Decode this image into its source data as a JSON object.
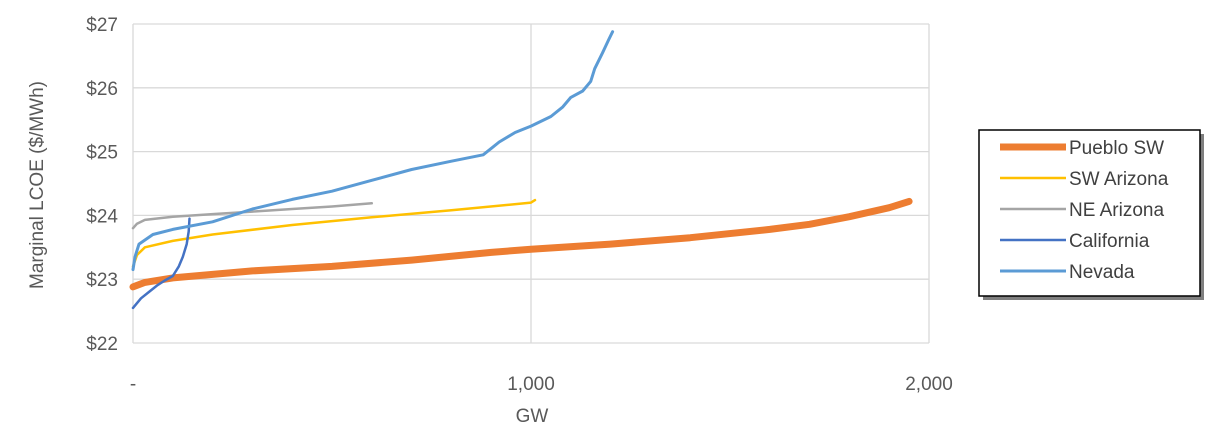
{
  "chart_data": {
    "type": "line",
    "xlabel": "GW",
    "ylabel": "Marginal LCOE ($/MWh)",
    "xlim": [
      0,
      2000
    ],
    "ylim": [
      22,
      27
    ],
    "x_ticks": [
      0,
      1000,
      2000
    ],
    "x_tick_labels": [
      "-",
      "1,000",
      "2,000"
    ],
    "y_ticks": [
      22,
      23,
      24,
      25,
      26,
      27
    ],
    "y_tick_labels": [
      "$22",
      "$23",
      "$24",
      "$25",
      "$26",
      "$27"
    ],
    "grid": true,
    "legend_position": "right",
    "series": [
      {
        "name": "Pueblo SW",
        "color": "#ED7D31",
        "width": 7,
        "points": [
          [
            0,
            22.88
          ],
          [
            30,
            22.95
          ],
          [
            100,
            23.02
          ],
          [
            300,
            23.13
          ],
          [
            500,
            23.2
          ],
          [
            700,
            23.3
          ],
          [
            900,
            23.42
          ],
          [
            1000,
            23.47
          ],
          [
            1200,
            23.55
          ],
          [
            1400,
            23.65
          ],
          [
            1600,
            23.78
          ],
          [
            1700,
            23.86
          ],
          [
            1800,
            23.98
          ],
          [
            1900,
            24.12
          ],
          [
            1950,
            24.22
          ]
        ]
      },
      {
        "name": "SW Arizona",
        "color": "#FFC000",
        "width": 2.5,
        "points": [
          [
            0,
            23.2
          ],
          [
            10,
            23.38
          ],
          [
            30,
            23.5
          ],
          [
            100,
            23.6
          ],
          [
            200,
            23.7
          ],
          [
            400,
            23.85
          ],
          [
            600,
            23.97
          ],
          [
            800,
            24.08
          ],
          [
            1000,
            24.2
          ],
          [
            1010,
            24.24
          ]
        ]
      },
      {
        "name": "NE Arizona",
        "color": "#A5A5A5",
        "width": 2.5,
        "points": [
          [
            0,
            23.8
          ],
          [
            10,
            23.87
          ],
          [
            30,
            23.93
          ],
          [
            100,
            23.98
          ],
          [
            200,
            24.02
          ],
          [
            300,
            24.06
          ],
          [
            400,
            24.1
          ],
          [
            500,
            24.14
          ],
          [
            600,
            24.19
          ]
        ]
      },
      {
        "name": "California",
        "color": "#4472C4",
        "width": 2.5,
        "points": [
          [
            0,
            22.55
          ],
          [
            20,
            22.7
          ],
          [
            40,
            22.8
          ],
          [
            60,
            22.9
          ],
          [
            80,
            22.98
          ],
          [
            100,
            23.05
          ],
          [
            115,
            23.2
          ],
          [
            125,
            23.35
          ],
          [
            135,
            23.55
          ],
          [
            140,
            23.75
          ],
          [
            142,
            23.95
          ]
        ]
      },
      {
        "name": "Nevada",
        "color": "#5B9BD5",
        "width": 3,
        "points": [
          [
            0,
            23.15
          ],
          [
            5,
            23.35
          ],
          [
            15,
            23.55
          ],
          [
            50,
            23.7
          ],
          [
            100,
            23.78
          ],
          [
            200,
            23.9
          ],
          [
            300,
            24.1
          ],
          [
            400,
            24.25
          ],
          [
            500,
            24.38
          ],
          [
            600,
            24.55
          ],
          [
            700,
            24.72
          ],
          [
            800,
            24.85
          ],
          [
            880,
            24.95
          ],
          [
            900,
            25.05
          ],
          [
            920,
            25.15
          ],
          [
            960,
            25.3
          ],
          [
            1000,
            25.4
          ],
          [
            1050,
            25.55
          ],
          [
            1080,
            25.7
          ],
          [
            1100,
            25.85
          ],
          [
            1130,
            25.95
          ],
          [
            1150,
            26.1
          ],
          [
            1160,
            26.3
          ],
          [
            1180,
            26.55
          ],
          [
            1195,
            26.75
          ],
          [
            1205,
            26.88
          ]
        ]
      }
    ]
  }
}
